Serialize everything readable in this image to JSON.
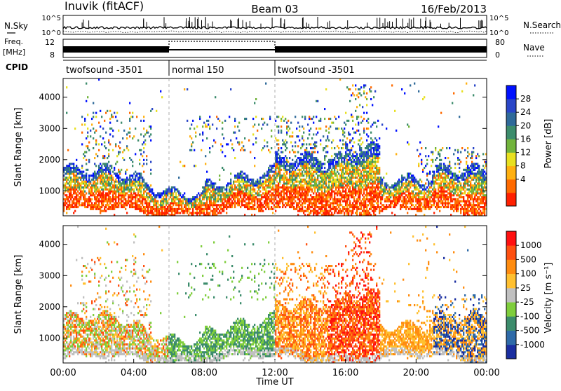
{
  "header": {
    "station": "Inuvik (fitACF)",
    "beam": "Beam 03",
    "date": "16/Feb/2013"
  },
  "summary": {
    "nsky_label": "N.Sky",
    "nsky_ticks": [
      "10^5",
      "10^0"
    ],
    "nsearch_label": "N.Search",
    "freq_label": "Freq.",
    "freq_unit": "[MHz]",
    "freq_ticks": [
      "12",
      "8"
    ],
    "nave_label": "Nave",
    "nave_ticks": [
      "80",
      "0"
    ],
    "cpid_label": "CPID",
    "cpid_segments": [
      {
        "name": "twofsound -3501",
        "start_h": 0,
        "end_h": 6
      },
      {
        "name": "normal 150",
        "start_h": 6,
        "end_h": 12
      },
      {
        "name": "twofsound -3501",
        "start_h": 12,
        "end_h": 24
      }
    ]
  },
  "chart_data": [
    {
      "type": "heatmap",
      "quantity": "Power",
      "ylabel": "Slant Range [km]",
      "yticks": [
        1000,
        2000,
        3000,
        4000
      ],
      "ylim": [
        200,
        4600
      ],
      "xlim": [
        0,
        24
      ],
      "colorbar_label": "Power [dB]",
      "colorbar_ticks": [
        "4",
        "8",
        "12",
        "16",
        "20",
        "24",
        "28"
      ],
      "colorbar_colors": [
        "#0010ff",
        "#2a46c8",
        "#2f6a9a",
        "#3c8c6c",
        "#72b43c",
        "#e8e020",
        "#ffb010",
        "#ff6a00",
        "#ff2000"
      ]
    },
    {
      "type": "heatmap",
      "quantity": "Velocity",
      "ylabel": "Slant Range [km]",
      "yticks": [
        1000,
        2000,
        3000,
        4000
      ],
      "ylim": [
        200,
        4600
      ],
      "xlim": [
        0,
        24
      ],
      "xlabel": "Time UT",
      "xticks": [
        "00:00",
        "04:00",
        "08:00",
        "12:00",
        "16:00",
        "20:00",
        "00:00"
      ],
      "colorbar_label": "Velocity [m s⁻¹]",
      "colorbar_ticks": [
        "1000",
        "500",
        "100",
        "25",
        "-25",
        "-100",
        "-500",
        "-1000"
      ],
      "colorbar_colors": [
        "#1a2ea0",
        "#2e6aa8",
        "#3c8c6c",
        "#7fce3c",
        "#c0c0c0",
        "#ffc030",
        "#ff8c10",
        "#ff5010",
        "#ff1010"
      ]
    }
  ]
}
